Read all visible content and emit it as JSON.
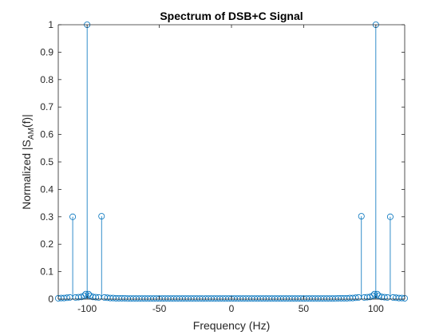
{
  "chart_data": {
    "type": "stem",
    "title": "Spectrum of DSB+C Signal",
    "xlabel": "Frequency (Hz)",
    "ylabel": {
      "prefix": "Normalized |S",
      "subscript": "AM",
      "suffix": "(f)|"
    },
    "xlim": [
      -120,
      120
    ],
    "ylim": [
      0,
      1
    ],
    "xticks": [
      -100,
      -50,
      0,
      50,
      100
    ],
    "xtick_labels": [
      "-100",
      "-50",
      "0",
      "50",
      "100"
    ],
    "yticks": [
      0,
      0.1,
      0.2,
      0.3,
      0.4,
      0.5,
      0.6,
      0.7,
      0.8,
      0.9,
      1
    ],
    "ytick_labels": [
      "0",
      "0.1",
      "0.2",
      "0.3",
      "0.4",
      "0.5",
      "0.6",
      "0.7",
      "0.8",
      "0.9",
      "1"
    ],
    "grid": false,
    "series": [
      {
        "color": "#0072BD",
        "marker": "circle-open",
        "points": [
          {
            "x": -120,
            "y": 0.003
          },
          {
            "x": -118,
            "y": 0.004
          },
          {
            "x": -116,
            "y": 0.004
          },
          {
            "x": -114,
            "y": 0.005
          },
          {
            "x": -112,
            "y": 0.006
          },
          {
            "x": -110,
            "y": 0.3
          },
          {
            "x": -108,
            "y": 0.006
          },
          {
            "x": -106,
            "y": 0.007
          },
          {
            "x": -104,
            "y": 0.008
          },
          {
            "x": -102,
            "y": 0.012
          },
          {
            "x": -101,
            "y": 0.018
          },
          {
            "x": -100,
            "y": 1.0
          },
          {
            "x": -99,
            "y": 0.018
          },
          {
            "x": -98,
            "y": 0.012
          },
          {
            "x": -96,
            "y": 0.008
          },
          {
            "x": -94,
            "y": 0.007
          },
          {
            "x": -92,
            "y": 0.006
          },
          {
            "x": -90,
            "y": 0.302
          },
          {
            "x": -88,
            "y": 0.006
          },
          {
            "x": -86,
            "y": 0.005
          },
          {
            "x": -84,
            "y": 0.004
          },
          {
            "x": -82,
            "y": 0.004
          },
          {
            "x": -80,
            "y": 0.003
          },
          {
            "x": -78,
            "y": 0.003
          },
          {
            "x": -76,
            "y": 0.003
          },
          {
            "x": -74,
            "y": 0.003
          },
          {
            "x": -72,
            "y": 0.002
          },
          {
            "x": -70,
            "y": 0.002
          },
          {
            "x": -68,
            "y": 0.002
          },
          {
            "x": -66,
            "y": 0.002
          },
          {
            "x": -64,
            "y": 0.002
          },
          {
            "x": -62,
            "y": 0.002
          },
          {
            "x": -60,
            "y": 0.002
          },
          {
            "x": -58,
            "y": 0.002
          },
          {
            "x": -56,
            "y": 0.002
          },
          {
            "x": -54,
            "y": 0.002
          },
          {
            "x": -52,
            "y": 0.002
          },
          {
            "x": -50,
            "y": 0.002
          },
          {
            "x": -48,
            "y": 0.002
          },
          {
            "x": -46,
            "y": 0.002
          },
          {
            "x": -44,
            "y": 0.002
          },
          {
            "x": -42,
            "y": 0.002
          },
          {
            "x": -40,
            "y": 0.002
          },
          {
            "x": -38,
            "y": 0.002
          },
          {
            "x": -36,
            "y": 0.002
          },
          {
            "x": -34,
            "y": 0.002
          },
          {
            "x": -32,
            "y": 0.002
          },
          {
            "x": -30,
            "y": 0.002
          },
          {
            "x": -28,
            "y": 0.002
          },
          {
            "x": -26,
            "y": 0.002
          },
          {
            "x": -24,
            "y": 0.002
          },
          {
            "x": -22,
            "y": 0.002
          },
          {
            "x": -20,
            "y": 0.002
          },
          {
            "x": -18,
            "y": 0.002
          },
          {
            "x": -16,
            "y": 0.002
          },
          {
            "x": -14,
            "y": 0.002
          },
          {
            "x": -12,
            "y": 0.002
          },
          {
            "x": -10,
            "y": 0.002
          },
          {
            "x": -8,
            "y": 0.002
          },
          {
            "x": -6,
            "y": 0.002
          },
          {
            "x": -4,
            "y": 0.002
          },
          {
            "x": -2,
            "y": 0.002
          },
          {
            "x": 0,
            "y": 0.002
          },
          {
            "x": 2,
            "y": 0.002
          },
          {
            "x": 4,
            "y": 0.002
          },
          {
            "x": 6,
            "y": 0.002
          },
          {
            "x": 8,
            "y": 0.002
          },
          {
            "x": 10,
            "y": 0.002
          },
          {
            "x": 12,
            "y": 0.002
          },
          {
            "x": 14,
            "y": 0.002
          },
          {
            "x": 16,
            "y": 0.002
          },
          {
            "x": 18,
            "y": 0.002
          },
          {
            "x": 20,
            "y": 0.002
          },
          {
            "x": 22,
            "y": 0.002
          },
          {
            "x": 24,
            "y": 0.002
          },
          {
            "x": 26,
            "y": 0.002
          },
          {
            "x": 28,
            "y": 0.002
          },
          {
            "x": 30,
            "y": 0.002
          },
          {
            "x": 32,
            "y": 0.002
          },
          {
            "x": 34,
            "y": 0.002
          },
          {
            "x": 36,
            "y": 0.002
          },
          {
            "x": 38,
            "y": 0.002
          },
          {
            "x": 40,
            "y": 0.002
          },
          {
            "x": 42,
            "y": 0.002
          },
          {
            "x": 44,
            "y": 0.002
          },
          {
            "x": 46,
            "y": 0.002
          },
          {
            "x": 48,
            "y": 0.002
          },
          {
            "x": 50,
            "y": 0.002
          },
          {
            "x": 52,
            "y": 0.002
          },
          {
            "x": 54,
            "y": 0.002
          },
          {
            "x": 56,
            "y": 0.002
          },
          {
            "x": 58,
            "y": 0.002
          },
          {
            "x": 60,
            "y": 0.002
          },
          {
            "x": 62,
            "y": 0.002
          },
          {
            "x": 64,
            "y": 0.002
          },
          {
            "x": 66,
            "y": 0.002
          },
          {
            "x": 68,
            "y": 0.002
          },
          {
            "x": 70,
            "y": 0.002
          },
          {
            "x": 72,
            "y": 0.002
          },
          {
            "x": 74,
            "y": 0.003
          },
          {
            "x": 76,
            "y": 0.003
          },
          {
            "x": 78,
            "y": 0.003
          },
          {
            "x": 80,
            "y": 0.003
          },
          {
            "x": 82,
            "y": 0.004
          },
          {
            "x": 84,
            "y": 0.004
          },
          {
            "x": 86,
            "y": 0.005
          },
          {
            "x": 88,
            "y": 0.006
          },
          {
            "x": 90,
            "y": 0.302
          },
          {
            "x": 92,
            "y": 0.006
          },
          {
            "x": 94,
            "y": 0.007
          },
          {
            "x": 96,
            "y": 0.008
          },
          {
            "x": 98,
            "y": 0.012
          },
          {
            "x": 99,
            "y": 0.018
          },
          {
            "x": 100,
            "y": 1.0
          },
          {
            "x": 101,
            "y": 0.018
          },
          {
            "x": 102,
            "y": 0.012
          },
          {
            "x": 104,
            "y": 0.008
          },
          {
            "x": 106,
            "y": 0.007
          },
          {
            "x": 108,
            "y": 0.006
          },
          {
            "x": 110,
            "y": 0.3
          },
          {
            "x": 112,
            "y": 0.006
          },
          {
            "x": 114,
            "y": 0.005
          },
          {
            "x": 116,
            "y": 0.004
          },
          {
            "x": 118,
            "y": 0.004
          },
          {
            "x": 120,
            "y": 0.003
          }
        ]
      }
    ]
  }
}
